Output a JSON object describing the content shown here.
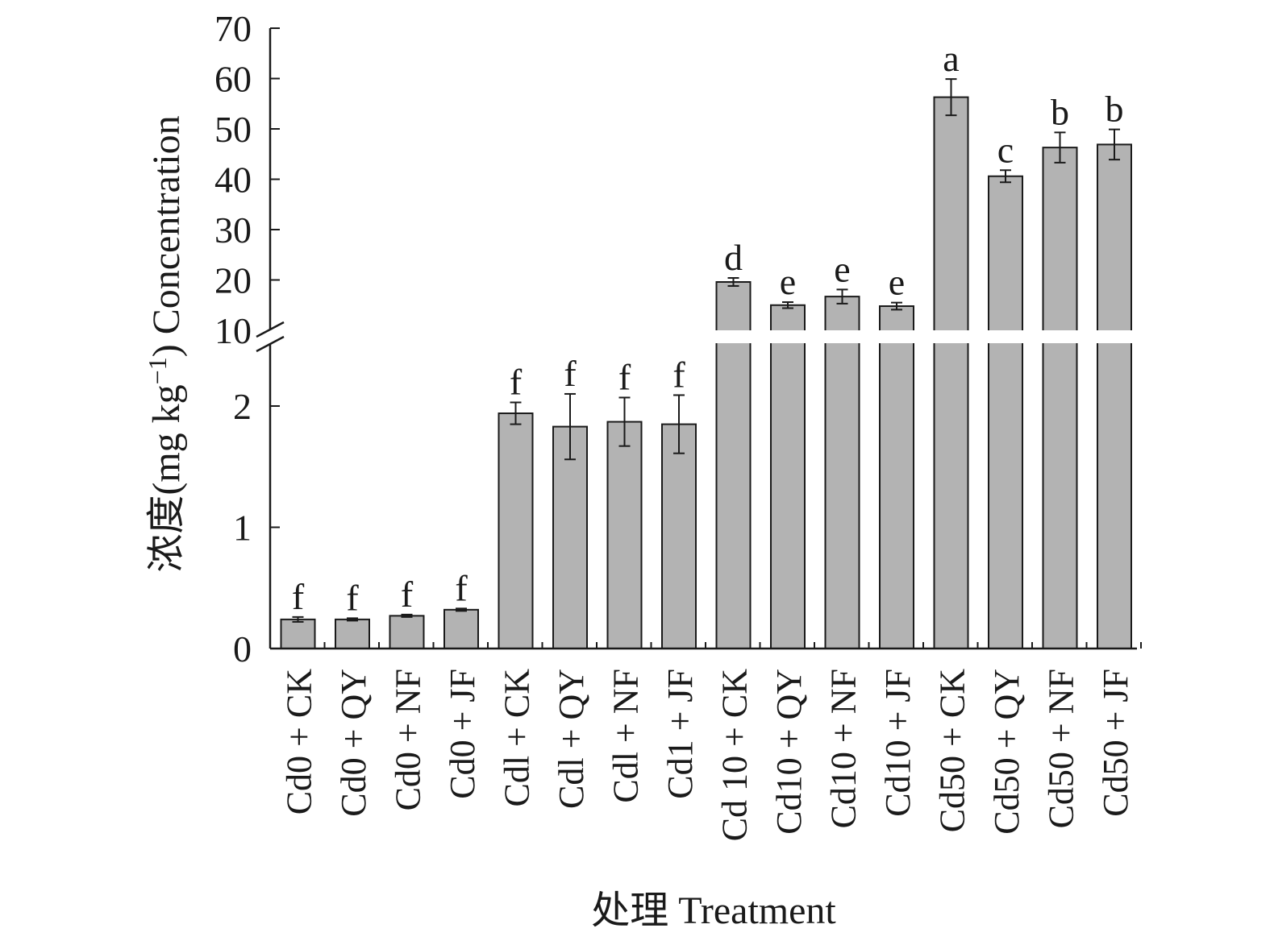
{
  "chart_data": {
    "type": "bar",
    "title": "",
    "xlabel": "处理 Treatment",
    "ylabel_parts": [
      "浓度(mg kg",
      "−1",
      ") Concentration"
    ],
    "broken_axis": {
      "lower_range": [
        0,
        2.5
      ],
      "upper_range": [
        10,
        70
      ],
      "lower_ticks": [
        "0",
        "1",
        "2"
      ],
      "upper_ticks": [
        "10",
        "20",
        "30",
        "40",
        "50",
        "60",
        "70"
      ]
    },
    "categories": [
      "Cd0 + CK",
      "Cd0 + QY",
      "Cd0 + NF",
      "Cd0 + JF",
      "Cdl + CK",
      "Cdl + QY",
      "Cdl + NF",
      "Cd1 + JF",
      "Cd 10 + CK",
      "Cd10 + QY",
      "Cd10 + NF",
      "Cd10 + JF",
      "Cd50 + CK",
      "Cd50 + QY",
      "Cd50 + NF",
      "Cd50 + JF"
    ],
    "values": [
      0.24,
      0.24,
      0.27,
      0.32,
      1.94,
      1.83,
      1.87,
      1.85,
      19.6,
      15.0,
      16.7,
      14.8,
      56.3,
      40.6,
      46.3,
      46.9
    ],
    "errors": [
      0.02,
      0.01,
      0.01,
      0.01,
      0.09,
      0.27,
      0.2,
      0.24,
      0.8,
      0.6,
      1.4,
      0.7,
      3.6,
      1.2,
      3.0,
      3.0
    ],
    "significance_letters": [
      "f",
      "f",
      "f",
      "f",
      "f",
      "f",
      "f",
      "f",
      "d",
      "e",
      "e",
      "e",
      "a",
      "c",
      "b",
      "b"
    ],
    "grid": false,
    "legend": "none",
    "colors": {
      "bar_fill": "#b3b3b3",
      "bar_stroke": "#1a1a1a",
      "axis": "#1a1a1a"
    }
  }
}
